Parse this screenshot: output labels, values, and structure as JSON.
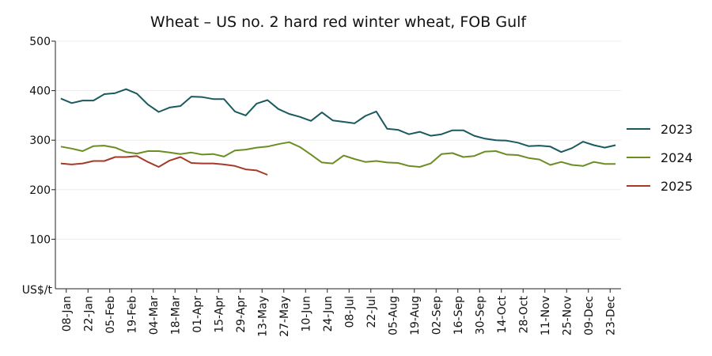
{
  "chart_data": {
    "type": "line",
    "title": "Wheat – US no. 2 hard red winter wheat, FOB Gulf",
    "xlabel": "",
    "ylabel": "US$/t",
    "ylim": [
      0,
      500
    ],
    "yticks": [
      100,
      200,
      300,
      400,
      500
    ],
    "grid": "horizontal",
    "legend_position": "right",
    "x_tick_labels": [
      "08-Jan",
      "22-Jan",
      "05-Feb",
      "19-Feb",
      "04-Mar",
      "18-Mar",
      "01-Apr",
      "15-Apr",
      "29-Apr",
      "13-May",
      "27-May",
      "10-Jun",
      "24-Jun",
      "08-Jul",
      "22-Jul",
      "05-Aug",
      "19-Aug",
      "02-Sep",
      "16-Sep",
      "30-Sep",
      "14-Oct",
      "28-Oct",
      "11-Nov",
      "25-Nov",
      "09-Dec",
      "23-Dec"
    ],
    "x_tick_weeks": [
      1,
      3,
      5,
      7,
      9,
      11,
      13,
      15,
      17,
      19,
      21,
      23,
      25,
      27,
      29,
      31,
      33,
      35,
      37,
      39,
      41,
      43,
      45,
      47,
      49,
      51
    ],
    "x_range_weeks": [
      0,
      52
    ],
    "series": [
      {
        "name": "2023",
        "color": "#1a5a5e",
        "x_weeks": [
          0.5,
          1.5,
          2.5,
          3.5,
          4.5,
          5.5,
          6.5,
          7.5,
          8.5,
          9.5,
          10.5,
          11.5,
          12.5,
          13.5,
          14.5,
          15.5,
          16.5,
          17.5,
          18.5,
          19.5,
          20.5,
          21.5,
          22.5,
          23.5,
          24.5,
          25.5,
          26.5,
          27.5,
          28.5,
          29.5,
          30.5,
          31.5,
          32.5,
          33.5,
          34.5,
          35.5,
          36.5,
          37.5,
          38.5,
          39.5,
          40.5,
          41.5,
          42.5,
          43.5,
          44.5,
          45.5,
          46.5,
          47.5,
          48.5,
          49.5,
          50.5,
          51.5
        ],
        "values": [
          384,
          375,
          380,
          380,
          393,
          395,
          403,
          394,
          372,
          357,
          366,
          369,
          388,
          387,
          383,
          383,
          358,
          350,
          374,
          381,
          363,
          353,
          347,
          339,
          356,
          340,
          337,
          334,
          349,
          358,
          323,
          321,
          312,
          317,
          309,
          312,
          320,
          320,
          309,
          303,
          300,
          299,
          295,
          288,
          289,
          287,
          276,
          284,
          297,
          290,
          285,
          290
        ]
      },
      {
        "name": "2024",
        "color": "#6b8e23",
        "x_weeks": [
          0.5,
          1.5,
          2.5,
          3.5,
          4.5,
          5.5,
          6.5,
          7.5,
          8.5,
          9.5,
          10.5,
          11.5,
          12.5,
          13.5,
          14.5,
          15.5,
          16.5,
          17.5,
          18.5,
          19.5,
          20.5,
          21.5,
          22.5,
          23.5,
          24.5,
          25.5,
          26.5,
          27.5,
          28.5,
          29.5,
          30.5,
          31.5,
          32.5,
          33.5,
          34.5,
          35.5,
          36.5,
          37.5,
          38.5,
          39.5,
          40.5,
          41.5,
          42.5,
          43.5,
          44.5,
          45.5,
          46.5,
          47.5,
          48.5,
          49.5,
          50.5,
          51.5
        ],
        "values": [
          287,
          283,
          278,
          288,
          289,
          285,
          276,
          273,
          278,
          278,
          275,
          272,
          275,
          271,
          272,
          267,
          279,
          281,
          285,
          287,
          292,
          296,
          286,
          271,
          255,
          253,
          269,
          262,
          256,
          258,
          255,
          254,
          248,
          246,
          253,
          272,
          274,
          266,
          268,
          277,
          278,
          271,
          270,
          264,
          261,
          250,
          256,
          250,
          248,
          256,
          252,
          252
        ]
      },
      {
        "name": "2025",
        "color": "#a63a2a",
        "x_weeks": [
          0.5,
          1.5,
          2.5,
          3.5,
          4.5,
          5.5,
          6.5,
          7.5,
          8.5,
          9.5,
          10.5,
          11.5,
          12.5,
          13.5,
          14.5,
          15.5,
          16.5,
          17.5,
          18.5,
          19.5
        ],
        "values": [
          253,
          251,
          253,
          258,
          258,
          266,
          266,
          268,
          256,
          246,
          259,
          266,
          254,
          253,
          253,
          251,
          248,
          241,
          239,
          230
        ]
      }
    ]
  }
}
